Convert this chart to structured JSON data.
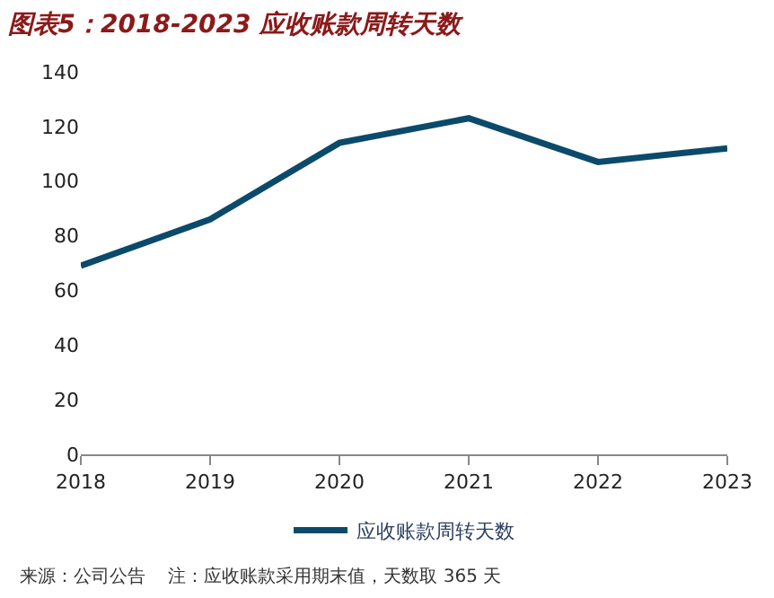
{
  "chart_data": {
    "type": "line",
    "title": "图表5：2018-2023 应收账款周转天数",
    "categories": [
      "2018",
      "2019",
      "2020",
      "2021",
      "2022",
      "2023"
    ],
    "series": [
      {
        "name": "应收账款周转天数",
        "color": "#0b4a6b",
        "values": [
          69,
          86,
          114,
          123,
          107,
          112
        ]
      }
    ],
    "ylim": [
      0,
      140
    ],
    "yticks": [
      0,
      20,
      40,
      60,
      80,
      100,
      120,
      140
    ],
    "legend": "bottom",
    "marker": "none",
    "line_style": "solid",
    "annotations": [
      "来源：公司公告    注：应收账款采用期末值，天数取 365 天"
    ]
  }
}
